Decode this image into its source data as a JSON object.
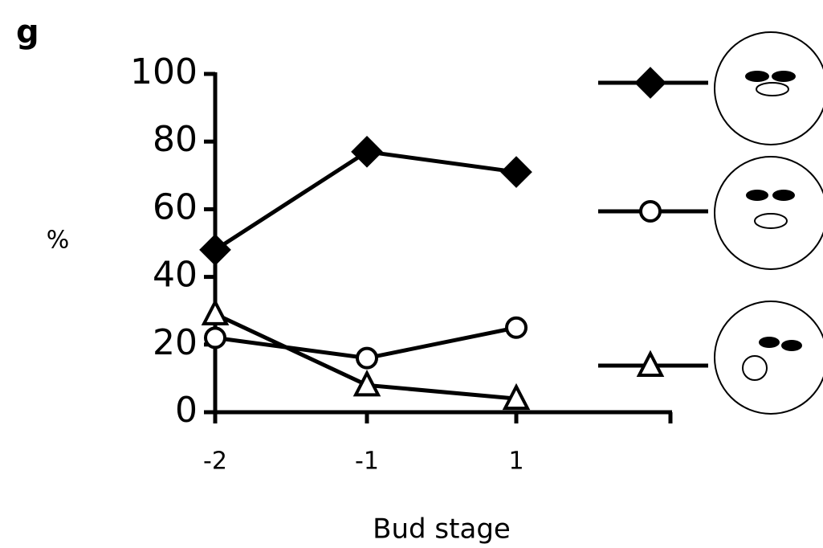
{
  "chart_data": {
    "type": "line",
    "panel_label": "g",
    "ylabel": "%",
    "xlabel": "Bud stage",
    "categories": [
      "-2",
      "-1",
      "1"
    ],
    "series": [
      {
        "color": "#000000",
        "marker": "diamond",
        "fill": "#000000",
        "values": [
          48,
          77,
          71
        ]
      },
      {
        "color": "#000000",
        "marker": "circle",
        "fill": "#ffffff",
        "values": [
          22,
          16,
          25
        ]
      },
      {
        "color": "#000000",
        "marker": "triangle",
        "fill": "#ffffff",
        "values": [
          29,
          8,
          4
        ]
      }
    ],
    "ylim": [
      0,
      100
    ],
    "yticks": [
      0,
      20,
      40,
      60,
      80,
      100
    ]
  }
}
